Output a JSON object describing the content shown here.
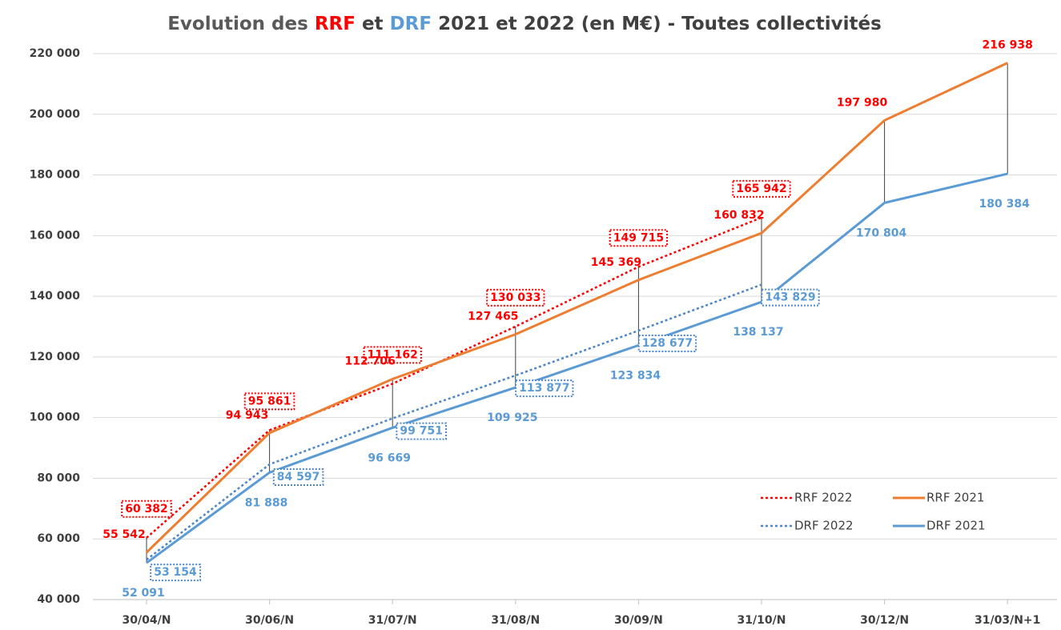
{
  "chart_data": {
    "type": "line",
    "title": [
      "Evolution des  ",
      "RRF",
      " et ",
      "DRF",
      " 2021 et 2022 (en M€)  - Toutes collectivités"
    ],
    "categories": [
      "30/04/N",
      "30/06/N",
      "31/07/N",
      "31/08/N",
      "30/09/N",
      "31/10/N",
      "30/12/N",
      "31/03/N+1"
    ],
    "ylim": [
      40000,
      220000
    ],
    "yticks": [
      {
        "value": 40000,
        "label": "40 000"
      },
      {
        "value": 60000,
        "label": "60 000"
      },
      {
        "value": 80000,
        "label": "80 000"
      },
      {
        "value": 100000,
        "label": "100 000"
      },
      {
        "value": 120000,
        "label": "120 000"
      },
      {
        "value": 140000,
        "label": "140 000"
      },
      {
        "value": 160000,
        "label": "160 000"
      },
      {
        "value": 180000,
        "label": "180 000"
      },
      {
        "value": 200000,
        "label": "200 000"
      },
      {
        "value": 220000,
        "label": "220 000"
      }
    ],
    "grid": true,
    "legend": "lower right",
    "hi_low_lines": true,
    "series": [
      {
        "name": "RRF 2022",
        "color": "#ff0000",
        "label_color": "#ff0000",
        "style": "dotted",
        "boxed_labels": true,
        "values": [
          60382,
          95861,
          111162,
          130033,
          149715,
          165942,
          null,
          null
        ],
        "value_labels": [
          "60 382",
          "95 861",
          "111 162",
          "130 033",
          "149 715",
          "165 942",
          null,
          null
        ]
      },
      {
        "name": "RRF 2021",
        "color": "#ed7d31",
        "label_color": "#ff0000",
        "style": "solid",
        "boxed_labels": false,
        "values": [
          55542,
          94943,
          112706,
          127465,
          145369,
          160832,
          197980,
          216938
        ],
        "value_labels": [
          "55 542",
          "94 943",
          "112 706",
          "127 465",
          "145 369",
          "160 832",
          "197 980",
          "216 938"
        ]
      },
      {
        "name": "DRF 2022",
        "color": "#4a86c8",
        "label_color": "#5b9bd5",
        "style": "dotted",
        "boxed_labels": true,
        "values": [
          53154,
          84597,
          99751,
          113877,
          128677,
          143829,
          null,
          null
        ],
        "value_labels": [
          "53 154",
          "84 597",
          "99 751",
          "113 877",
          "128 677",
          "143 829",
          null,
          null
        ]
      },
      {
        "name": "DRF 2021",
        "color": "#5b9bd5",
        "label_color": "#5b9bd5",
        "style": "solid",
        "boxed_labels": false,
        "values": [
          52091,
          81888,
          96669,
          109925,
          123834,
          138137,
          170804,
          180384
        ],
        "value_labels": [
          "52 091",
          "81 888",
          "96 669",
          "109 925",
          "123 834",
          "138 137",
          "170 804",
          "180 384"
        ]
      }
    ]
  }
}
